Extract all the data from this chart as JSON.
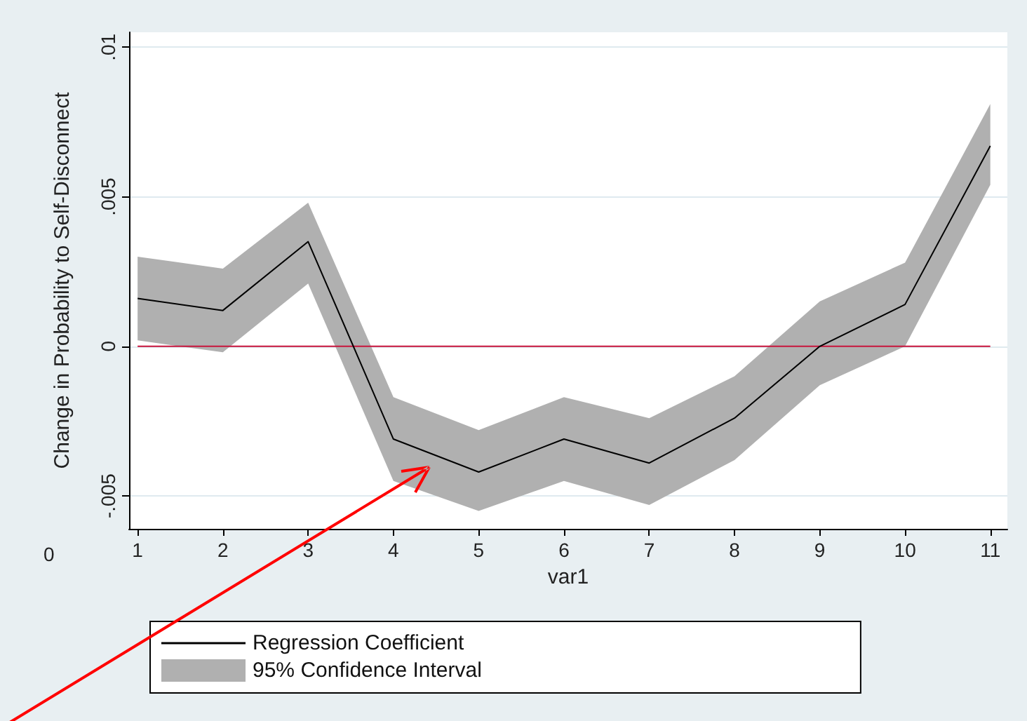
{
  "chart_data": {
    "type": "line",
    "xlabel": "var1",
    "ylabel": "Change in Probability to Self-Disconnect",
    "x": [
      1,
      2,
      3,
      4,
      5,
      6,
      7,
      8,
      9,
      10,
      11
    ],
    "series": [
      {
        "name": "Regression Coefficient",
        "color": "#000000",
        "values": [
          0.0016,
          0.0012,
          0.0035,
          -0.0031,
          -0.0042,
          -0.0031,
          -0.0039,
          -0.0024,
          0.0,
          0.0014,
          0.0067
        ]
      },
      {
        "name": "95% Confidence Interval",
        "type": "area",
        "color": "#b0b0b0",
        "values": [
          null,
          null,
          null,
          null,
          null,
          null,
          null,
          null,
          null,
          null,
          null
        ],
        "lower": [
          0.0002,
          -0.0002,
          0.0021,
          -0.0045,
          -0.0055,
          -0.0045,
          -0.0053,
          -0.0038,
          -0.0013,
          0.0,
          0.0054
        ],
        "upper": [
          0.003,
          0.0026,
          0.0048,
          -0.0017,
          -0.0028,
          -0.0017,
          -0.0024,
          -0.001,
          0.0015,
          0.0028,
          0.0081
        ]
      }
    ],
    "xlim": [
      0.9,
      11.2
    ],
    "xticks": [
      1,
      2,
      3,
      4,
      5,
      6,
      7,
      8,
      9,
      10,
      11
    ],
    "ylim": [
      -0.0061,
      0.0105
    ],
    "yticks": [
      {
        "value": -0.005,
        "label": "-.005"
      },
      {
        "value": 0,
        "label": "0"
      },
      {
        "value": 0.005,
        "label": ".005"
      },
      {
        "value": 0.01,
        "label": ".01"
      }
    ],
    "ref_lines": [
      {
        "axis": "y",
        "value": 0,
        "color": "#c8143c"
      }
    ],
    "grid": "y",
    "legend": "bottom",
    "marker": "none",
    "line_style": "solid",
    "annotations": [
      "0"
    ]
  }
}
